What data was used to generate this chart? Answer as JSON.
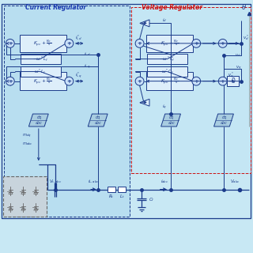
{
  "bg_color": "#c8e8f4",
  "cr_label": "Current Regulator",
  "vr_label": "Voltage Regulator",
  "theta": "θ",
  "outer_bg": "#c0e4f2",
  "cr_bg": "#b8def0",
  "vr_bg": "#c4e6f4",
  "block_fc": "#ddeefa",
  "block_ec": "#1a3a8a",
  "circle_fc": "#c8e0f8",
  "dqabc_fc": "#a8cce0",
  "inv_fc": "#c8d4dc",
  "inv_ec": "#888888",
  "blue": "#1a3a8a",
  "red": "#cc1111",
  "gray": "#666666",
  "lw": 0.7,
  "lw2": 0.9
}
